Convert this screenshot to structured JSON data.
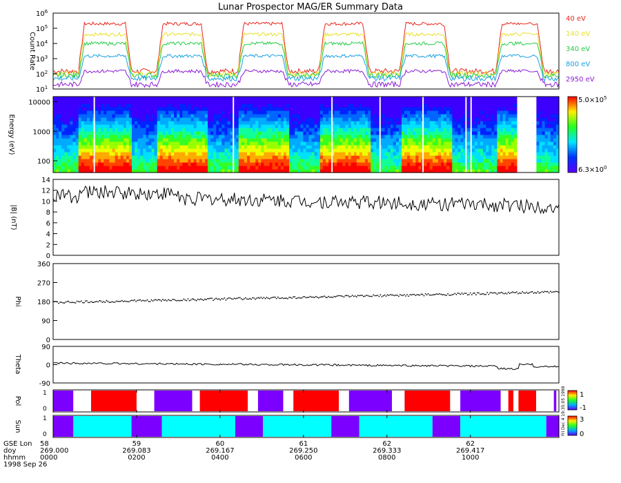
{
  "title": "Lunar Prospector MAG/ER Summary Data",
  "side_label": "Fri Dec 4 19:35:05 1998",
  "chart_data": [
    {
      "panel": "count-rate",
      "type": "line",
      "ylabel": "Count Rate",
      "yscale": "log",
      "ylim": [
        10,
        1000000
      ],
      "yticks": [
        {
          "base": "10",
          "exp": "1"
        },
        {
          "base": "10",
          "exp": "2"
        },
        {
          "base": "10",
          "exp": "3"
        },
        {
          "base": "10",
          "exp": "4"
        },
        {
          "base": "10",
          "exp": "5"
        },
        {
          "base": "10",
          "exp": "6"
        }
      ],
      "series": [
        {
          "name": "40 eV",
          "color": "#e8261c",
          "day": 200000,
          "night": 150
        },
        {
          "name": "140 eV",
          "color": "#e8e02a",
          "day": 40000,
          "night": 100
        },
        {
          "name": "340 eV",
          "color": "#22cc44",
          "day": 10000,
          "night": 80
        },
        {
          "name": "800 eV",
          "color": "#1aa0e0",
          "day": 1500,
          "night": 50
        },
        {
          "name": "2950 eV",
          "color": "#8a1ad6",
          "day": 150,
          "night": 20
        }
      ]
    },
    {
      "panel": "spectrogram",
      "type": "heatmap",
      "ylabel": "Energy (eV)",
      "yscale": "log",
      "ylim": [
        40,
        15000
      ],
      "yticks": [
        "100",
        "1000",
        "10000"
      ],
      "colorbar": {
        "max": "5.0×10",
        "max_exp": "5",
        "min": "6.3×10",
        "min_exp": "0"
      }
    },
    {
      "panel": "field-magnitude",
      "type": "line",
      "ylabel": "|B| (nT)",
      "ylim": [
        0,
        14
      ],
      "yticks": [
        "0",
        "2",
        "4",
        "6",
        "8",
        "10",
        "12",
        "14"
      ],
      "start": 11.0,
      "end": 9.0
    },
    {
      "panel": "phi",
      "type": "scatter",
      "ylabel": "Phi",
      "ylim": [
        0,
        360
      ],
      "yticks": [
        "0",
        "90",
        "180",
        "270",
        "360"
      ],
      "start": 175,
      "end": 225
    },
    {
      "panel": "theta",
      "type": "line",
      "ylabel": "Theta",
      "ylim": [
        -90,
        90
      ],
      "yticks": [
        "-90",
        "0",
        "90"
      ],
      "start": 8,
      "end": -10
    },
    {
      "panel": "polarity",
      "type": "heatmap",
      "ylabel": "Pol",
      "colorbar": {
        "ticks": [
          "1",
          "-1"
        ]
      },
      "blocks": [
        {
          "from": 0.0,
          "to": 0.04,
          "color": "#7b00ff"
        },
        {
          "from": 0.04,
          "to": 0.075,
          "color": "#ffffff"
        },
        {
          "from": 0.075,
          "to": 0.165,
          "color": "#ff0000"
        },
        {
          "from": 0.165,
          "to": 0.2,
          "color": "#ffffff"
        },
        {
          "from": 0.2,
          "to": 0.275,
          "color": "#7b00ff"
        },
        {
          "from": 0.275,
          "to": 0.29,
          "color": "#ffffff"
        },
        {
          "from": 0.29,
          "to": 0.385,
          "color": "#ff0000"
        },
        {
          "from": 0.385,
          "to": 0.405,
          "color": "#ffffff"
        },
        {
          "from": 0.405,
          "to": 0.455,
          "color": "#7b00ff"
        },
        {
          "from": 0.455,
          "to": 0.475,
          "color": "#ffffff"
        },
        {
          "from": 0.475,
          "to": 0.565,
          "color": "#ff0000"
        },
        {
          "from": 0.565,
          "to": 0.585,
          "color": "#ffffff"
        },
        {
          "from": 0.585,
          "to": 0.67,
          "color": "#7b00ff"
        },
        {
          "from": 0.67,
          "to": 0.695,
          "color": "#ffffff"
        },
        {
          "from": 0.695,
          "to": 0.785,
          "color": "#ff0000"
        },
        {
          "from": 0.785,
          "to": 0.805,
          "color": "#ffffff"
        },
        {
          "from": 0.805,
          "to": 0.885,
          "color": "#7b00ff"
        },
        {
          "from": 0.885,
          "to": 0.9,
          "color": "#ffffff"
        },
        {
          "from": 0.9,
          "to": 0.91,
          "color": "#ff0000"
        },
        {
          "from": 0.91,
          "to": 0.92,
          "color": "#ffffff"
        },
        {
          "from": 0.92,
          "to": 0.955,
          "color": "#ff0000"
        },
        {
          "from": 0.955,
          "to": 0.99,
          "color": "#ffffff"
        },
        {
          "from": 0.99,
          "to": 0.995,
          "color": "#7b00ff"
        },
        {
          "from": 0.995,
          "to": 1.0,
          "color": "#ffffff"
        }
      ]
    },
    {
      "panel": "sun",
      "type": "heatmap",
      "ylabel": "Sun",
      "colorbar": {
        "ticks": [
          "3",
          "0"
        ]
      },
      "blocks": [
        {
          "from": 0.0,
          "to": 0.04,
          "color": "#7b00ff"
        },
        {
          "from": 0.04,
          "to": 0.155,
          "color": "#00ffff"
        },
        {
          "from": 0.155,
          "to": 0.215,
          "color": "#7b00ff"
        },
        {
          "from": 0.215,
          "to": 0.36,
          "color": "#00ffff"
        },
        {
          "from": 0.36,
          "to": 0.415,
          "color": "#7b00ff"
        },
        {
          "from": 0.415,
          "to": 0.55,
          "color": "#00ffff"
        },
        {
          "from": 0.55,
          "to": 0.605,
          "color": "#7b00ff"
        },
        {
          "from": 0.605,
          "to": 0.75,
          "color": "#00ffff"
        },
        {
          "from": 0.75,
          "to": 0.805,
          "color": "#7b00ff"
        },
        {
          "from": 0.805,
          "to": 0.975,
          "color": "#00ffff"
        },
        {
          "from": 0.975,
          "to": 1.0,
          "color": "#7b00ff"
        }
      ]
    }
  ],
  "time_axis": {
    "row_labels": [
      "GSE Lon",
      "doy",
      "hhmm",
      "1998 Sep 26"
    ],
    "ticks": [
      {
        "lon": "58",
        "doy": "269.000",
        "hhmm": "0000"
      },
      {
        "lon": "59",
        "doy": "269.083",
        "hhmm": "0200"
      },
      {
        "lon": "60",
        "doy": "269.167",
        "hhmm": "0400"
      },
      {
        "lon": "61",
        "doy": "269.250",
        "hhmm": "0600"
      },
      {
        "lon": "62",
        "doy": "269.333",
        "hhmm": "0800"
      },
      {
        "lon": "62",
        "doy": "269.417",
        "hhmm": "1000"
      }
    ]
  }
}
